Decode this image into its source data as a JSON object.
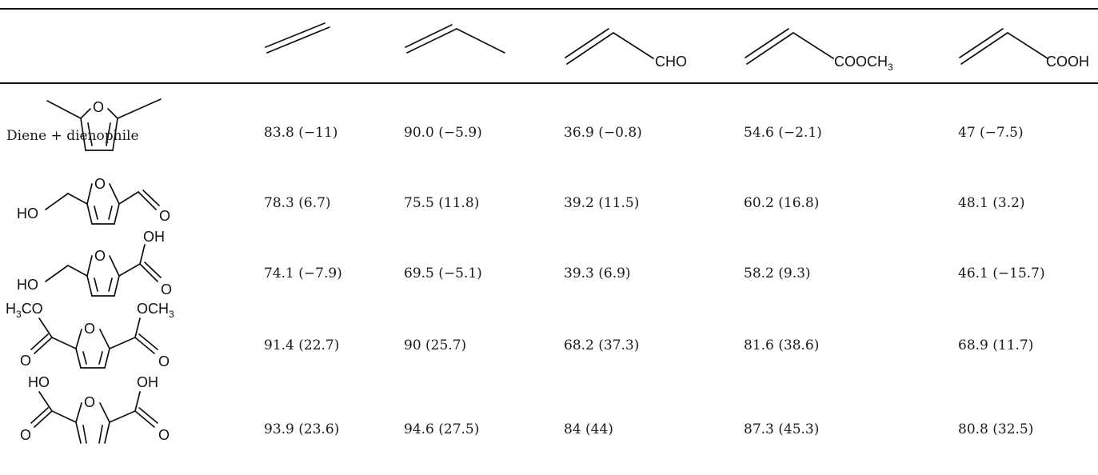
{
  "table": {
    "header_label": "Diene + dienophile",
    "dienophiles": [
      {
        "name": "ethylene",
        "substituent": ""
      },
      {
        "name": "propene",
        "substituent": ""
      },
      {
        "name": "acrolein",
        "substituent": "CHO"
      },
      {
        "name": "methyl-acrylate",
        "substituent_main": "COOCH",
        "substituent_sub": "3"
      },
      {
        "name": "acrylic-acid",
        "substituent": "COOH"
      }
    ],
    "dienes": [
      {
        "name": "2,5-dimethylfuran",
        "labels": {}
      },
      {
        "name": "5-hydroxymethylfurfural",
        "labels": {
          "left": "HO",
          "right_o": "O",
          "ring_o": "O"
        }
      },
      {
        "name": "5-hydroxymethyl-2-furoic-acid",
        "labels": {
          "left": "HO",
          "top_right": "OH",
          "right_o": "O",
          "ring_o": "O"
        }
      },
      {
        "name": "dimethyl-2,5-furandicarboxylate",
        "labels": {
          "top_left_pre": "H",
          "top_left_sub": "3",
          "top_left_post": "CO",
          "top_right_pre": "OCH",
          "top_right_sub": "3",
          "left_o": "O",
          "right_o": "O",
          "ring_o": "O"
        }
      },
      {
        "name": "2,5-furandicarboxylic-acid",
        "labels": {
          "top_left": "HO",
          "top_right": "OH",
          "left_o": "O",
          "right_o": "O",
          "ring_o": "O"
        }
      }
    ],
    "rows": [
      [
        "83.8 (−11)",
        "90.0 (−5.9)",
        "36.9 (−0.8)",
        "54.6 (−2.1)",
        "47 (−7.5)"
      ],
      [
        "78.3 (6.7)",
        "75.5 (11.8)",
        "39.2 (11.5)",
        "60.2 (16.8)",
        "48.1 (3.2)"
      ],
      [
        "74.1 (−7.9)",
        "69.5 (−5.1)",
        "39.3 (6.9)",
        "58.2 (9.3)",
        "46.1 (−15.7)"
      ],
      [
        "91.4 (22.7)",
        "90 (25.7)",
        "68.2 (37.3)",
        "81.6 (38.6)",
        "68.9 (11.7)"
      ],
      [
        "93.9 (23.6)",
        "94.6 (27.5)",
        "84 (44)",
        "87.3 (45.3)",
        "80.8 (32.5)"
      ]
    ]
  }
}
